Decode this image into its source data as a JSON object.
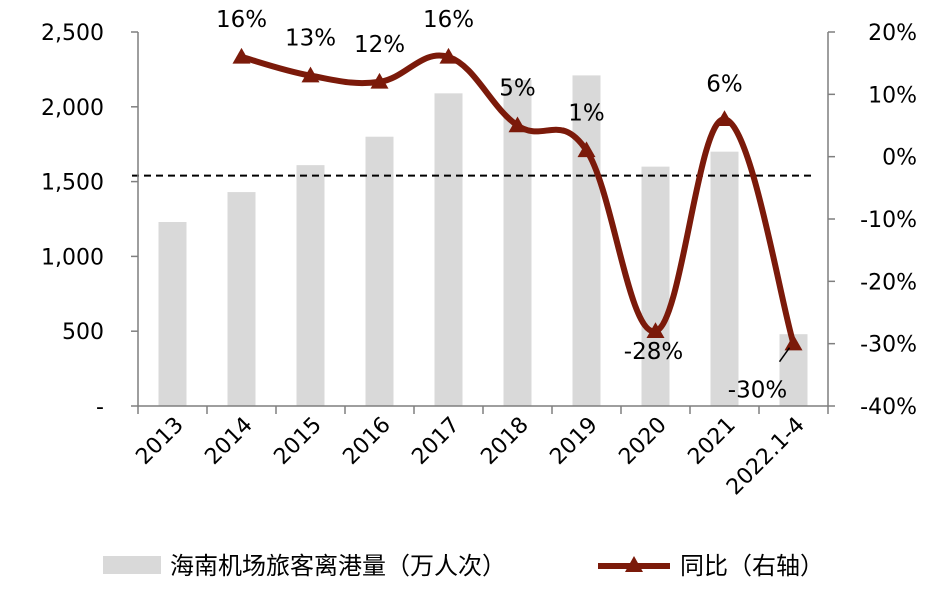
{
  "chart_data": {
    "type": "bar+line",
    "categories": [
      "2013",
      "2014",
      "2015",
      "2016",
      "2017",
      "2018",
      "2019",
      "2020",
      "2021",
      "2022.1-4"
    ],
    "bar_series": {
      "name": "海南机场旅客离港量（万人次）",
      "values": [
        1230,
        1430,
        1610,
        1800,
        2090,
        2180,
        2210,
        1600,
        1700,
        480
      ],
      "color": "#D9D9D9"
    },
    "line_series": {
      "name": "同比（右轴）",
      "x_start_index": 1,
      "values": [
        16,
        13,
        12,
        16,
        5,
        1,
        -28,
        6,
        -30
      ],
      "labels": [
        "16%",
        "13%",
        "12%",
        "16%",
        "5%",
        "1%",
        "-28%",
        "6%",
        "-30%"
      ],
      "color": "#7B1A0A"
    },
    "left_axis": {
      "ylim": [
        0,
        2500
      ],
      "tick_labels": [
        "-",
        "500",
        "1,000",
        "1,500",
        "2,000",
        "2,500"
      ]
    },
    "right_axis": {
      "ylim": [
        -40,
        20
      ],
      "tick_labels": [
        "-40%",
        "-30%",
        "-20%",
        "-10%",
        "0%",
        "10%",
        "20%"
      ]
    },
    "reference_line": {
      "value": 1540,
      "axis": "left",
      "style": "dashed"
    },
    "legend": {
      "position": "bottom",
      "items": [
        "海南机场旅客离港量（万人次）",
        "同比（右轴）"
      ]
    }
  }
}
